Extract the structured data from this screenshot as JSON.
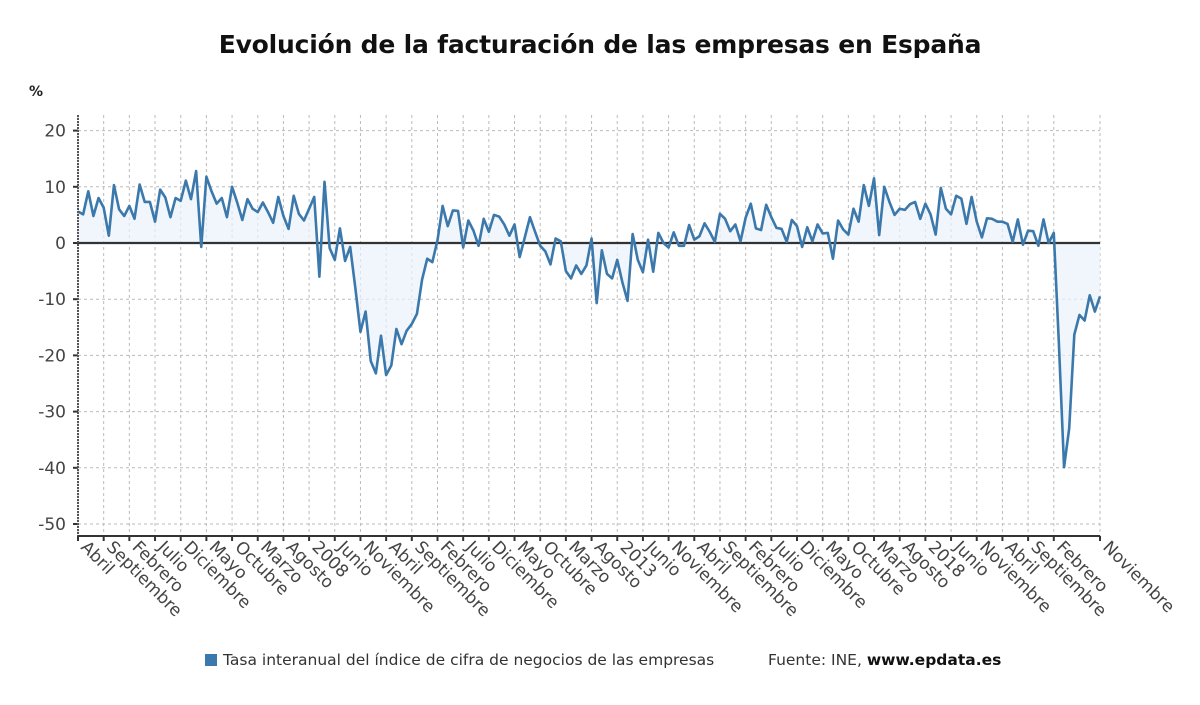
{
  "chart_data": {
    "type": "area",
    "title": "Evolución de la facturación de las empresas en España",
    "ylabel": "%",
    "xlabel": "",
    "ylim": [
      -52,
      23
    ],
    "yticks": [
      20,
      10,
      0,
      -10,
      -20,
      -30,
      -40,
      -50
    ],
    "grid": true,
    "legend_position": "bottom",
    "start_month": "2004-04",
    "end_month": "2020-11",
    "x_tick_labels": [
      "Abril",
      "Septiembre",
      "Febrero",
      "Julio",
      "Diciembre",
      "Mayo",
      "Octubre",
      "Marzo",
      "Agosto",
      "2008",
      "Junio",
      "Noviembre",
      "Abril",
      "Septiembre",
      "Febrero",
      "Julio",
      "Diciembre",
      "Mayo",
      "Octubre",
      "Marzo",
      "Agosto",
      "2013",
      "Junio",
      "Noviembre",
      "Abril",
      "Septiembre",
      "Febrero",
      "Julio",
      "Diciembre",
      "Mayo",
      "Octubre",
      "Marzo",
      "Agosto",
      "2018",
      "Junio",
      "Noviembre",
      "Abril",
      "Septiembre",
      "Febrero",
      "Noviembre"
    ],
    "x_tick_index": [
      0,
      5,
      10,
      15,
      20,
      25,
      30,
      35,
      40,
      45,
      50,
      55,
      60,
      65,
      70,
      75,
      80,
      85,
      90,
      95,
      100,
      105,
      110,
      115,
      120,
      125,
      130,
      135,
      140,
      145,
      150,
      155,
      160,
      165,
      170,
      175,
      180,
      185,
      190,
      199
    ],
    "series": [
      {
        "name": "Tasa interanual del índice de cifra de negocios de las empresas",
        "color": "#3b78ab",
        "values": [
          5.6,
          5.1,
          9.2,
          4.8,
          8.0,
          6.3,
          1.3,
          10.3,
          6.0,
          4.8,
          6.6,
          4.3,
          10.4,
          7.3,
          7.3,
          3.8,
          9.5,
          8.1,
          4.6,
          8.0,
          7.5,
          11.1,
          7.8,
          12.8,
          -0.7,
          11.8,
          9.2,
          7.0,
          8.0,
          4.6,
          10.0,
          7.2,
          4.1,
          7.8,
          6.1,
          5.5,
          7.2,
          5.5,
          3.6,
          8.2,
          4.8,
          2.5,
          8.4,
          5.2,
          4.0,
          6.1,
          8.2,
          -6.0,
          10.9,
          -0.9,
          -3.0,
          2.6,
          -3.2,
          -0.7,
          -8.0,
          -15.8,
          -12.2,
          -21.0,
          -23.2,
          -16.5,
          -23.5,
          -21.8,
          -15.3,
          -18.0,
          -15.6,
          -14.4,
          -12.6,
          -6.5,
          -2.8,
          -3.4,
          0.5,
          6.6,
          3.0,
          5.8,
          5.7,
          -0.8,
          4.0,
          2.2,
          -0.5,
          4.3,
          2.0,
          5.0,
          4.7,
          3.3,
          1.3,
          3.3,
          -2.5,
          1.0,
          4.6,
          2.0,
          -0.5,
          -1.5,
          -3.8,
          0.8,
          0.3,
          -5.0,
          -6.3,
          -4.0,
          -5.5,
          -4.0,
          0.8,
          -10.7,
          -1.3,
          -5.5,
          -6.3,
          -3.0,
          -7.0,
          -10.3,
          1.6,
          -3.0,
          -5.2,
          0.6,
          -5.1,
          1.8,
          0.0,
          -0.8,
          1.9,
          -0.5,
          -0.5,
          3.2,
          0.6,
          1.2,
          3.5,
          2.0,
          0.2,
          5.2,
          4.3,
          2.1,
          3.3,
          0.3,
          4.5,
          7.0,
          2.6,
          2.3,
          6.8,
          4.6,
          2.7,
          2.5,
          0.2,
          4.1,
          3.0,
          -0.7,
          2.8,
          0.3,
          3.3,
          1.7,
          1.8,
          -2.8,
          4.0,
          2.4,
          1.5,
          6.1,
          3.8,
          10.3,
          6.6,
          11.5,
          1.4,
          10.0,
          7.3,
          5.0,
          6.1,
          5.9,
          6.9,
          7.3,
          4.3,
          7.0,
          5.1,
          1.5,
          9.8,
          6.1,
          5.1,
          8.4,
          7.9,
          3.4,
          8.2,
          3.8,
          1.0,
          4.4,
          4.3,
          3.8,
          3.8,
          3.4,
          0.2,
          4.2,
          -0.3,
          2.2,
          2.1,
          -0.5,
          4.2,
          0.0,
          1.8,
          -18.0,
          -39.9,
          -33.0,
          -16.3,
          -12.8,
          -13.8,
          -9.3,
          -12.2,
          -9.5
        ]
      }
    ]
  },
  "legend": {
    "label": "Tasa interanual del índice de cifra de negocios de las empresas",
    "color": "#3b78ab"
  },
  "source": {
    "prefix": "Fuente: INE, ",
    "site": "www.epdata.es"
  }
}
